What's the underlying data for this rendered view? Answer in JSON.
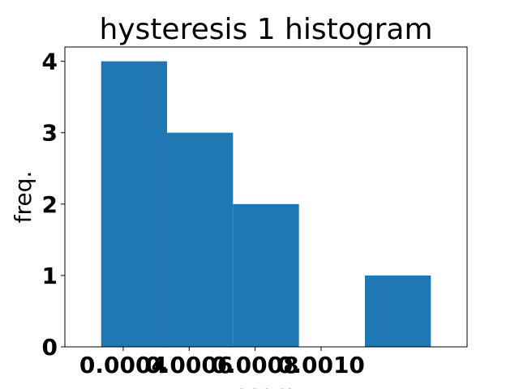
{
  "chart_data": {
    "type": "bar",
    "title": "hysteresis 1 histogram",
    "xlabel": "score",
    "ylabel": "freq.",
    "bins": [
      {
        "start": 0.000333,
        "end": 0.000533,
        "count": 4
      },
      {
        "start": 0.000533,
        "end": 0.000733,
        "count": 3
      },
      {
        "start": 0.000733,
        "end": 0.000933,
        "count": 2
      },
      {
        "start": 0.000933,
        "end": 0.001133,
        "count": 0
      },
      {
        "start": 0.001133,
        "end": 0.001333,
        "count": 1
      }
    ],
    "xlim": [
      0.000223,
      0.001443
    ],
    "ylim": [
      0,
      4.2
    ],
    "xticks": [
      0.0004,
      0.0006,
      0.0008,
      0.001
    ],
    "xtick_labels": [
      "0.0004",
      "0.0006",
      "0.0008",
      "0.0010"
    ],
    "yticks": [
      0,
      1,
      2,
      3,
      4
    ],
    "ytick_labels": [
      "0",
      "1",
      "2",
      "3",
      "4"
    ],
    "bar_color": "#1f77b4",
    "grid": false
  }
}
